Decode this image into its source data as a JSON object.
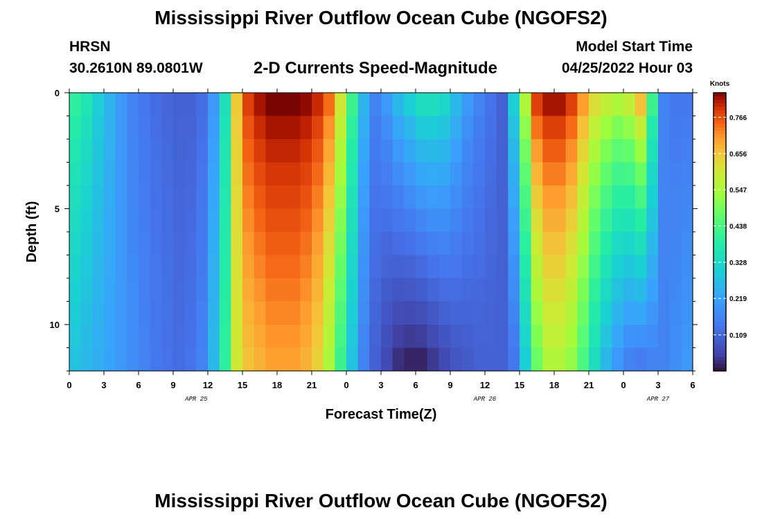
{
  "chart_data": {
    "type": "heatmap",
    "title": "Mississippi River Outflow Ocean Cube (NGOFS2)",
    "station": "HRSN",
    "coords": "30.2610N  89.0801W",
    "subtitle": "2-D Currents Speed-Magnitude",
    "model_start_label": "Model Start Time",
    "model_start": "04/25/2022 Hour 03",
    "xlabel": "Forecast Time(Z)",
    "ylabel": "Depth (ft)",
    "x_ticks": [
      "0",
      "3",
      "6",
      "9",
      "12",
      "15",
      "18",
      "21",
      "0",
      "3",
      "6",
      "9",
      "12",
      "15",
      "18",
      "21",
      "0",
      "3",
      "6"
    ],
    "x_tick_hours": [
      0,
      3,
      6,
      9,
      12,
      15,
      18,
      21,
      24,
      27,
      30,
      33,
      36,
      39,
      42,
      45,
      48,
      51,
      54
    ],
    "xlim": [
      0,
      54
    ],
    "ylim": [
      0,
      12
    ],
    "y_ticks": [
      "0",
      "5",
      "10"
    ],
    "y_tick_values": [
      0,
      5,
      10
    ],
    "date_labels": [
      {
        "label": "APR 25",
        "hour": 11
      },
      {
        "label": "APR 26",
        "hour": 36
      },
      {
        "label": "APR 27",
        "hour": 51
      }
    ],
    "colorbar": {
      "unit": "Knots",
      "min": 0.0,
      "max": 0.84,
      "ticks": [
        "0.766",
        "0.656",
        "0.547",
        "0.438",
        "0.328",
        "0.219",
        "0.109"
      ],
      "tick_values": [
        0.766,
        0.656,
        0.547,
        0.438,
        0.328,
        0.219,
        0.109
      ]
    },
    "depth_levels": 12,
    "time_steps": 54,
    "surface_profile": [
      0.4,
      0.36,
      0.3,
      0.25,
      0.2,
      0.16,
      0.14,
      0.12,
      0.11,
      0.1,
      0.1,
      0.12,
      0.2,
      0.35,
      0.65,
      0.78,
      0.82,
      0.84,
      0.84,
      0.84,
      0.83,
      0.8,
      0.74,
      0.6,
      0.42,
      0.25,
      0.16,
      0.2,
      0.26,
      0.3,
      0.34,
      0.34,
      0.32,
      0.26,
      0.2,
      0.16,
      0.13,
      0.1,
      0.3,
      0.55,
      0.78,
      0.82,
      0.82,
      0.78,
      0.7,
      0.62,
      0.58,
      0.55,
      0.58,
      0.66,
      0.42,
      0.16,
      0.14,
      0.14
    ],
    "deep_profile": [
      0.28,
      0.26,
      0.24,
      0.22,
      0.2,
      0.18,
      0.16,
      0.14,
      0.13,
      0.12,
      0.13,
      0.16,
      0.26,
      0.4,
      0.6,
      0.66,
      0.68,
      0.7,
      0.7,
      0.7,
      0.68,
      0.64,
      0.55,
      0.42,
      0.28,
      0.16,
      0.1,
      0.06,
      0.03,
      0.02,
      0.02,
      0.04,
      0.06,
      0.08,
      0.09,
      0.1,
      0.1,
      0.1,
      0.14,
      0.3,
      0.48,
      0.56,
      0.56,
      0.52,
      0.44,
      0.34,
      0.26,
      0.2,
      0.16,
      0.15,
      0.16,
      0.16,
      0.18,
      0.2
    ]
  },
  "repeat_title": "Mississippi River Outflow Ocean Cube (NGOFS2)"
}
